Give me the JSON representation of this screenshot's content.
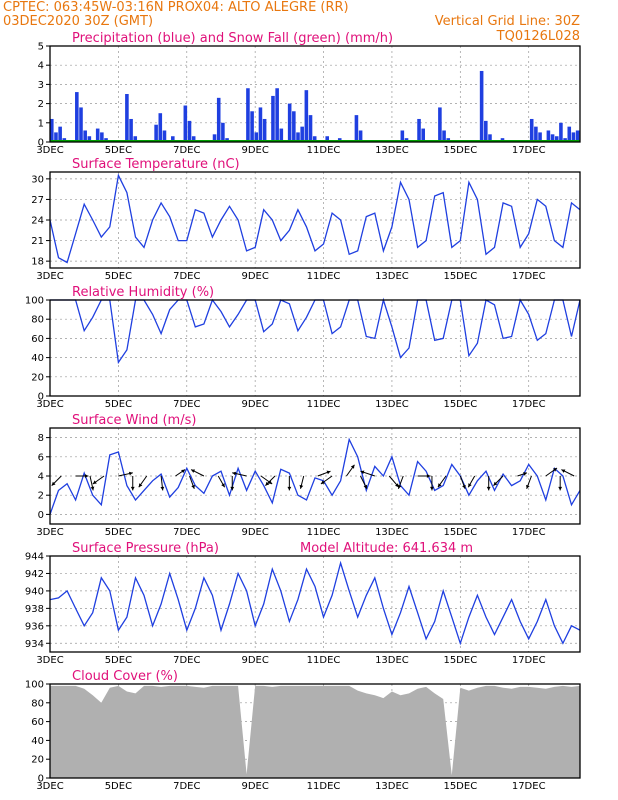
{
  "header": {
    "line1_left": "CPTEC:   063:45W-03:16N   PROX04: ALTO ALEGRE (RR)",
    "line2_left": "03DEC2020 30Z (GMT)",
    "line2_right": "Vertical Grid Line: 30Z",
    "line3_right": "TQ0126L028"
  },
  "colors": {
    "header": "#e8770f",
    "title": "#e0107a",
    "series": "#1f3fe0",
    "snow": "#00a000",
    "cloud": "#b0b0b0",
    "arrow": "#000000"
  },
  "x_axis": {
    "labels": [
      "3DEC",
      "5DEC",
      "7DEC",
      "9DEC",
      "11DEC",
      "13DEC",
      "15DEC",
      "17DEC"
    ],
    "start_day": 3,
    "end_day": 18.5
  },
  "chart_data": [
    {
      "id": "precip",
      "type": "bar",
      "title": "Precipitation (blue) and Snow Fall (green) (mm/h)",
      "ylim": [
        0,
        5
      ],
      "yticks": [
        0,
        1,
        2,
        3,
        4,
        5
      ],
      "series": [
        {
          "name": "Precipitation",
          "values": [
            1.2,
            0.5,
            0.8,
            0.2,
            0.0,
            0.0,
            2.6,
            1.8,
            0.6,
            0.3,
            0.0,
            0.7,
            0.5,
            0.2,
            0.0,
            0.0,
            0.0,
            0.0,
            2.5,
            1.2,
            0.3,
            0.0,
            0.0,
            0.0,
            0.0,
            0.9,
            1.5,
            0.6,
            0.0,
            0.3,
            0.0,
            0.0,
            1.9,
            1.1,
            0.3,
            0.0,
            0.0,
            0.0,
            0.0,
            0.4,
            2.3,
            1.0,
            0.2,
            0.0,
            0.0,
            0.0,
            0.0,
            2.8,
            1.6,
            0.5,
            1.8,
            1.2,
            0.0,
            2.4,
            2.8,
            0.7,
            0.0,
            2.0,
            1.6,
            0.5,
            0.8,
            2.7,
            1.4,
            0.3,
            0.0,
            0.0,
            0.3,
            0.0,
            0.0,
            0.2,
            0.0,
            0.0,
            0.0,
            1.4,
            0.6,
            0.0,
            0.0,
            0.0,
            0.0,
            0.0,
            0.0,
            0.0,
            0.0,
            0.0,
            0.6,
            0.2,
            0.0,
            0.0,
            1.2,
            0.7,
            0.0,
            0.0,
            0.0,
            1.8,
            0.6,
            0.2,
            0.0,
            0.0,
            0.0,
            0.0,
            0.0,
            0.0,
            0.0,
            3.7,
            1.1,
            0.4,
            0.0,
            0.0,
            0.2,
            0.0,
            0.0,
            0.0,
            0.0,
            0.0,
            0.0,
            1.2,
            0.8,
            0.5,
            0.0,
            0.6,
            0.4,
            0.3,
            1.0,
            0.2,
            0.8,
            0.5,
            0.6
          ]
        },
        {
          "name": "Snow Fall",
          "values": [
            0
          ]
        }
      ]
    },
    {
      "id": "temp",
      "type": "line",
      "title": "Surface Temperature (nC)",
      "ylim": [
        17,
        31
      ],
      "yticks": [
        18,
        21,
        24,
        27,
        30
      ],
      "x": [
        3.0,
        3.25,
        3.5,
        3.75,
        4.0,
        4.25,
        4.5,
        4.75,
        5.0,
        5.25,
        5.5,
        5.75,
        6.0,
        6.25,
        6.5,
        6.75,
        7.0,
        7.25,
        7.5,
        7.75,
        8.0,
        8.25,
        8.5,
        8.75,
        9.0,
        9.25,
        9.5,
        9.75,
        10.0,
        10.25,
        10.5,
        10.75,
        11.0,
        11.25,
        11.5,
        11.75,
        12.0,
        12.25,
        12.5,
        12.75,
        13.0,
        13.25,
        13.5,
        13.75,
        14.0,
        14.25,
        14.5,
        14.75,
        15.0,
        15.25,
        15.5,
        15.75,
        16.0,
        16.25,
        16.5,
        16.75,
        17.0,
        17.25,
        17.5,
        17.75,
        18.0,
        18.25,
        18.5
      ],
      "values": [
        24.0,
        18.5,
        17.8,
        22.0,
        26.3,
        24.0,
        21.5,
        23.0,
        30.5,
        28.0,
        21.5,
        20.0,
        24.0,
        26.5,
        24.5,
        21.0,
        21.0,
        25.5,
        25.0,
        21.5,
        24.0,
        26.0,
        24.0,
        19.5,
        20.0,
        25.5,
        24.0,
        21.0,
        22.5,
        25.5,
        23.0,
        19.5,
        20.5,
        25.0,
        24.0,
        19.0,
        19.5,
        24.5,
        25.0,
        19.5,
        23.0,
        29.5,
        27.0,
        20.0,
        21.0,
        27.5,
        28.0,
        20.0,
        21.0,
        29.5,
        27.0,
        19.0,
        20.0,
        26.5,
        26.0,
        20.0,
        22.0,
        27.0,
        26.0,
        21.0,
        20.0,
        26.5,
        25.5
      ]
    },
    {
      "id": "rh",
      "type": "line",
      "title": "Relative Humidity (%)",
      "ylim": [
        0,
        100
      ],
      "yticks": [
        0,
        20,
        40,
        60,
        80,
        100
      ],
      "x": [
        3.0,
        3.25,
        3.5,
        3.75,
        4.0,
        4.25,
        4.5,
        4.75,
        5.0,
        5.25,
        5.5,
        5.75,
        6.0,
        6.25,
        6.5,
        6.75,
        7.0,
        7.25,
        7.5,
        7.75,
        8.0,
        8.25,
        8.5,
        8.75,
        9.0,
        9.25,
        9.5,
        9.75,
        10.0,
        10.25,
        10.5,
        10.75,
        11.0,
        11.25,
        11.5,
        11.75,
        12.0,
        12.25,
        12.5,
        12.75,
        13.0,
        13.25,
        13.5,
        13.75,
        14.0,
        14.25,
        14.5,
        14.75,
        15.0,
        15.25,
        15.5,
        15.75,
        16.0,
        16.25,
        16.5,
        16.75,
        17.0,
        17.25,
        17.5,
        17.75,
        18.0,
        18.25,
        18.5
      ],
      "values": [
        100,
        100,
        100,
        100,
        68,
        82,
        100,
        100,
        35,
        48,
        100,
        100,
        85,
        65,
        90,
        100,
        100,
        72,
        75,
        100,
        88,
        72,
        85,
        100,
        100,
        67,
        75,
        100,
        96,
        68,
        82,
        100,
        100,
        65,
        72,
        100,
        100,
        62,
        60,
        100,
        72,
        40,
        50,
        100,
        100,
        58,
        60,
        100,
        100,
        42,
        55,
        100,
        95,
        60,
        62,
        100,
        85,
        58,
        65,
        100,
        100,
        62,
        100
      ]
    },
    {
      "id": "wind",
      "type": "line",
      "title": "Surface Wind (m/s)",
      "ylim": [
        -1,
        9
      ],
      "yticks": [
        0,
        2,
        4,
        6,
        8
      ],
      "x": [
        3.0,
        3.25,
        3.5,
        3.75,
        4.0,
        4.25,
        4.5,
        4.75,
        5.0,
        5.25,
        5.5,
        5.75,
        6.0,
        6.25,
        6.5,
        6.75,
        7.0,
        7.25,
        7.5,
        7.75,
        8.0,
        8.25,
        8.5,
        8.75,
        9.0,
        9.25,
        9.5,
        9.75,
        10.0,
        10.25,
        10.5,
        10.75,
        11.0,
        11.25,
        11.5,
        11.75,
        12.0,
        12.25,
        12.5,
        12.75,
        13.0,
        13.25,
        13.5,
        13.75,
        14.0,
        14.25,
        14.5,
        14.75,
        15.0,
        15.25,
        15.5,
        15.75,
        16.0,
        16.25,
        16.5,
        16.75,
        17.0,
        17.25,
        17.5,
        17.75,
        18.0,
        18.25,
        18.5
      ],
      "values": [
        0.0,
        2.5,
        3.2,
        1.5,
        4.3,
        2.0,
        1.0,
        6.2,
        6.5,
        3.0,
        1.5,
        2.5,
        3.5,
        4.2,
        1.8,
        2.8,
        4.8,
        3.0,
        2.2,
        4.0,
        4.5,
        2.0,
        4.8,
        2.5,
        4.5,
        3.0,
        1.2,
        4.7,
        4.3,
        2.0,
        1.5,
        3.8,
        3.5,
        2.0,
        3.5,
        7.8,
        6.0,
        2.5,
        5.0,
        4.0,
        6.0,
        3.0,
        2.0,
        5.5,
        4.5,
        2.5,
        3.0,
        5.2,
        4.0,
        2.0,
        3.5,
        4.5,
        2.5,
        4.2,
        3.0,
        3.5,
        5.2,
        4.0,
        1.5,
        4.8,
        4.0,
        1.0,
        2.5
      ]
    },
    {
      "id": "pressure",
      "type": "line",
      "title": "Surface Pressure (hPa)",
      "annotation": "Model Altitude: 641.634 m",
      "ylim": [
        933,
        944
      ],
      "yticks": [
        934,
        936,
        938,
        940,
        942,
        944
      ],
      "x": [
        3.0,
        3.25,
        3.5,
        3.75,
        4.0,
        4.25,
        4.5,
        4.75,
        5.0,
        5.25,
        5.5,
        5.75,
        6.0,
        6.25,
        6.5,
        6.75,
        7.0,
        7.25,
        7.5,
        7.75,
        8.0,
        8.25,
        8.5,
        8.75,
        9.0,
        9.25,
        9.5,
        9.75,
        10.0,
        10.25,
        10.5,
        10.75,
        11.0,
        11.25,
        11.5,
        11.75,
        12.0,
        12.25,
        12.5,
        12.75,
        13.0,
        13.25,
        13.5,
        13.75,
        14.0,
        14.25,
        14.5,
        14.75,
        15.0,
        15.25,
        15.5,
        15.75,
        16.0,
        16.25,
        16.5,
        16.75,
        17.0,
        17.25,
        17.5,
        17.75,
        18.0,
        18.25,
        18.5
      ],
      "values": [
        939.0,
        939.2,
        940.0,
        938.0,
        936.0,
        937.5,
        941.5,
        940.0,
        935.5,
        937.0,
        941.5,
        939.5,
        936.0,
        938.5,
        942.0,
        939.0,
        935.5,
        938.0,
        941.5,
        939.5,
        935.5,
        938.5,
        942.0,
        940.0,
        936.0,
        938.5,
        942.5,
        940.0,
        936.5,
        939.0,
        942.5,
        940.5,
        937.0,
        939.5,
        943.2,
        940.0,
        937.0,
        939.5,
        941.5,
        938.0,
        935.0,
        937.5,
        940.5,
        937.5,
        934.5,
        936.5,
        940.0,
        937.0,
        934.0,
        937.0,
        939.5,
        937.0,
        935.0,
        937.0,
        939.0,
        936.5,
        934.5,
        936.5,
        939.0,
        936.0,
        934.0,
        936.0,
        935.5
      ]
    },
    {
      "id": "cloud",
      "type": "area",
      "title": "Cloud Cover (%)",
      "ylim": [
        0,
        100
      ],
      "yticks": [
        0,
        20,
        40,
        60,
        80,
        100
      ],
      "x": [
        3.0,
        3.25,
        3.5,
        3.75,
        4.0,
        4.25,
        4.5,
        4.75,
        5.0,
        5.25,
        5.5,
        5.75,
        6.0,
        6.25,
        6.5,
        6.75,
        7.0,
        7.25,
        7.5,
        7.75,
        8.0,
        8.25,
        8.5,
        8.75,
        9.0,
        9.25,
        9.5,
        9.75,
        10.0,
        10.25,
        10.5,
        10.75,
        11.0,
        11.25,
        11.5,
        11.75,
        12.0,
        12.25,
        12.5,
        12.75,
        13.0,
        13.25,
        13.5,
        13.75,
        14.0,
        14.25,
        14.5,
        14.75,
        15.0,
        15.25,
        15.5,
        15.75,
        16.0,
        16.25,
        16.5,
        16.75,
        17.0,
        17.25,
        17.5,
        17.75,
        18.0,
        18.25,
        18.5
      ],
      "values": [
        98,
        98,
        98,
        98,
        95,
        88,
        80,
        96,
        98,
        92,
        90,
        98,
        98,
        97,
        98,
        98,
        98,
        97,
        96,
        98,
        98,
        98,
        98,
        4,
        98,
        98,
        97,
        98,
        98,
        98,
        98,
        98,
        98,
        98,
        98,
        98,
        93,
        90,
        88,
        85,
        92,
        88,
        90,
        95,
        97,
        90,
        84,
        3,
        96,
        93,
        96,
        98,
        98,
        96,
        95,
        97,
        97,
        96,
        95,
        97,
        98,
        97,
        98
      ]
    }
  ],
  "wind_vectors": {
    "x": [
      3.33,
      3.75,
      4.17,
      4.58,
      5.0,
      5.42,
      5.83,
      6.25,
      6.67,
      7.08,
      7.5,
      7.92,
      8.33,
      8.75,
      9.17,
      9.58,
      10.0,
      10.42,
      10.83,
      11.25,
      11.67,
      12.08,
      12.5,
      12.92,
      13.33,
      13.75,
      14.17,
      14.58,
      15.0,
      15.42,
      15.83,
      16.25,
      16.67,
      17.08,
      17.5,
      17.92,
      18.33
    ],
    "u": [
      -0.6,
      0.8,
      0.2,
      -0.7,
      0.9,
      0.0,
      -0.5,
      0.1,
      0.6,
      0.3,
      -0.8,
      0.4,
      0.0,
      -0.9,
      0.7,
      -0.6,
      0.0,
      -0.2,
      0.8,
      -0.7,
      0.5,
      0.4,
      -0.9,
      0.6,
      -0.3,
      0.8,
      0.0,
      -0.5,
      0.3,
      -0.4,
      0.0,
      -0.6,
      0.6,
      -0.3,
      0.7,
      0.0,
      -0.8
    ],
    "v": [
      -0.6,
      0.0,
      -0.9,
      -0.5,
      0.2,
      -0.9,
      -0.7,
      -0.9,
      0.4,
      -0.8,
      0.4,
      -0.7,
      -0.9,
      0.2,
      -0.5,
      -0.6,
      -0.9,
      -0.8,
      0.3,
      -0.5,
      0.7,
      -0.8,
      0.3,
      -0.7,
      -0.8,
      0.0,
      -0.9,
      -0.7,
      -0.8,
      -0.7,
      -0.9,
      -0.6,
      0.2,
      -0.8,
      0.5,
      -0.9,
      0.4
    ]
  }
}
